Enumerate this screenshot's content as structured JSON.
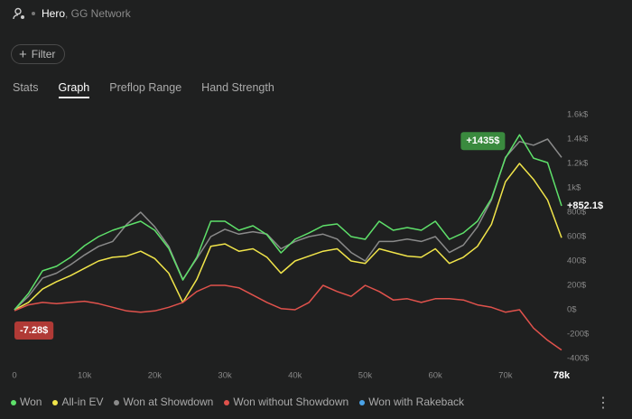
{
  "header": {
    "user": "Hero",
    "network": ", GG Network"
  },
  "filter": "Filter",
  "tabs": [
    "Stats",
    "Graph",
    "Preflop Range",
    "Hand Strength"
  ],
  "active_tab": 1,
  "chart_data": {
    "type": "line",
    "x": [
      0,
      2000,
      4000,
      6000,
      8000,
      10000,
      12000,
      14000,
      16000,
      18000,
      20000,
      22000,
      24000,
      26000,
      28000,
      30000,
      32000,
      34000,
      36000,
      38000,
      40000,
      42000,
      44000,
      46000,
      48000,
      50000,
      52000,
      54000,
      56000,
      58000,
      60000,
      62000,
      64000,
      66000,
      68000,
      70000,
      72000,
      74000,
      76000,
      78000
    ],
    "series": [
      {
        "name": "Won",
        "color": "#5ee06a",
        "values": [
          0,
          133,
          319,
          356,
          430,
          526,
          600,
          652,
          689,
          726,
          652,
          504,
          244,
          430,
          726,
          726,
          652,
          689,
          615,
          467,
          578,
          630,
          689,
          704,
          600,
          578,
          726,
          652,
          674,
          652,
          726,
          578,
          630,
          726,
          911,
          1244,
          1435,
          1244,
          1207,
          852.1
        ]
      },
      {
        "name": "All-in EV",
        "color": "#f0e44a",
        "values": [
          0,
          60,
          170,
          230,
          280,
          340,
          400,
          430,
          440,
          480,
          420,
          300,
          60,
          250,
          520,
          540,
          480,
          500,
          430,
          300,
          400,
          440,
          480,
          500,
          400,
          380,
          500,
          470,
          440,
          430,
          500,
          380,
          430,
          520,
          700,
          1050,
          1200,
          1070,
          900,
          590
        ]
      },
      {
        "name": "Won at Showdown",
        "color": "#8a8a8a",
        "values": [
          0,
          110,
          260,
          300,
          370,
          450,
          520,
          560,
          700,
          800,
          680,
          520,
          250,
          420,
          600,
          660,
          620,
          640,
          620,
          500,
          560,
          600,
          620,
          580,
          470,
          400,
          560,
          560,
          580,
          560,
          600,
          470,
          530,
          680,
          900,
          1250,
          1380,
          1350,
          1400,
          1250
        ]
      },
      {
        "name": "Won without Showdown",
        "color": "#e0524c",
        "values": [
          -7.28,
          40,
          60,
          50,
          60,
          70,
          50,
          20,
          -10,
          -20,
          -10,
          20,
          60,
          150,
          200,
          200,
          180,
          120,
          60,
          10,
          0,
          60,
          200,
          150,
          110,
          200,
          150,
          80,
          90,
          60,
          90,
          90,
          80,
          40,
          20,
          -20,
          0,
          -150,
          -250,
          -330
        ]
      },
      {
        "name": "Won with Rakeback",
        "color": "#4aa3e8",
        "values": [
          null,
          null,
          null,
          null,
          null,
          null,
          null,
          null,
          null,
          null,
          null,
          null,
          null,
          null,
          null,
          null,
          null,
          null,
          null,
          null,
          null,
          null,
          null,
          null,
          null,
          null,
          null,
          null,
          null,
          null,
          null,
          null,
          null,
          null,
          null,
          null,
          null,
          null,
          null,
          null
        ]
      }
    ],
    "xlim": [
      0,
      78000
    ],
    "xticks": [
      0,
      {
        "value": 10000,
        "label": "10k"
      },
      {
        "value": 20000,
        "label": "20k"
      },
      {
        "value": 30000,
        "label": "30k"
      },
      {
        "value": 40000,
        "label": "40k"
      },
      {
        "value": 50000,
        "label": "50k"
      },
      {
        "value": 60000,
        "label": "60k"
      },
      {
        "value": 70000,
        "label": "70k"
      },
      {
        "value": 78000,
        "label": "78k"
      }
    ],
    "ylim": [
      -400,
      1600
    ],
    "yticks": [
      {
        "value": -400,
        "label": "-400$"
      },
      {
        "value": -200,
        "label": "-200$"
      },
      {
        "value": 0,
        "label": "0$"
      },
      {
        "value": 200,
        "label": "200$"
      },
      {
        "value": 400,
        "label": "400$"
      },
      {
        "value": 600,
        "label": "600$"
      },
      {
        "value": 800,
        "label": "800$"
      },
      {
        "value": 1000,
        "label": "1k$"
      },
      {
        "value": 1200,
        "label": "1.2k$"
      },
      {
        "value": 1400,
        "label": "1.4k$"
      },
      {
        "value": 1600,
        "label": "1.6k$"
      }
    ],
    "annotations": [
      {
        "text": "+1435$",
        "x": 72000,
        "y": 1435,
        "color": "#3a8a3e"
      },
      {
        "text": "+852.1$",
        "x": 78000,
        "y": 852.1
      },
      {
        "text": "-7.28$",
        "x": 0,
        "y": -7.28,
        "color": "#b03a36"
      }
    ]
  }
}
